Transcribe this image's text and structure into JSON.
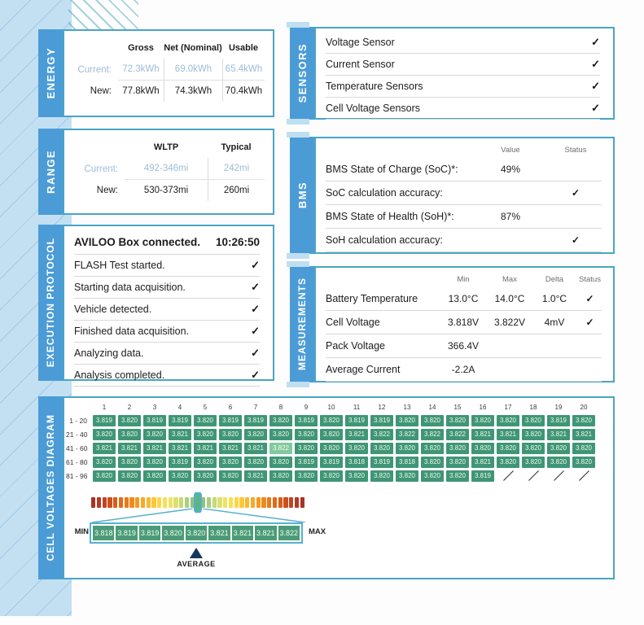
{
  "report": {
    "energy": {
      "title": "ENERGY",
      "col_headers": [
        "Gross",
        "Net (Nominal)",
        "Usable"
      ],
      "current": {
        "label": "Current:",
        "values": [
          "72.3kWh",
          "69.0kWh",
          "65.4kWh"
        ]
      },
      "new": {
        "label": "New:",
        "values": [
          "77.8kWh",
          "74.3kWh",
          "70.4kWh"
        ]
      }
    },
    "range": {
      "title": "RANGE",
      "col_headers": [
        "WLTP",
        "Typical"
      ],
      "current": {
        "label": "Current:",
        "values": [
          "492-346mi",
          "242mi"
        ]
      },
      "new": {
        "label": "New:",
        "values": [
          "530-373mi",
          "260mi"
        ]
      }
    },
    "sensors": {
      "title": "SENSORS",
      "items": [
        {
          "label": "Voltage Sensor",
          "status": "✓"
        },
        {
          "label": "Current Sensor",
          "status": "✓"
        },
        {
          "label": "Temperature Sensors",
          "status": "✓"
        },
        {
          "label": "Cell Voltage Sensors",
          "status": "✓"
        }
      ]
    },
    "bms": {
      "title": "BMS",
      "col_headers": [
        "Value",
        "Status"
      ],
      "rows": [
        {
          "label": "BMS State of Charge (SoC)*:",
          "value": "49%",
          "status": ""
        },
        {
          "label": "SoC calculation accuracy:",
          "value": "",
          "status": "✓"
        },
        {
          "label": "BMS State of Health (SoH)*:",
          "value": "87%",
          "status": ""
        },
        {
          "label": "SoH calculation accuracy:",
          "value": "",
          "status": "✓"
        }
      ]
    },
    "protocol": {
      "title": "EXECUTION PROTOCOL",
      "header": {
        "label": "AVILOO Box connected.",
        "time": "10:26:50"
      },
      "items": [
        {
          "label": "FLASH Test started.",
          "status": "✓"
        },
        {
          "label": "Starting data acquisition.",
          "status": "✓"
        },
        {
          "label": "Vehicle detected.",
          "status": "✓"
        },
        {
          "label": "Finished data acquisition.",
          "status": "✓"
        },
        {
          "label": "Analyzing data.",
          "status": "✓"
        },
        {
          "label": "Analysis completed.",
          "status": "✓"
        }
      ]
    },
    "measurements": {
      "title": "MEASUREMENTS",
      "col_headers": [
        "Min",
        "Max",
        "Delta",
        "Status"
      ],
      "rows": [
        {
          "label": "Battery Temperature",
          "min": "13.0°C",
          "max": "14.0°C",
          "delta": "1.0°C",
          "status": "✓"
        },
        {
          "label": "Cell Voltage",
          "min": "3.818V",
          "max": "3.822V",
          "delta": "4mV",
          "status": "✓"
        },
        {
          "label": "Pack Voltage",
          "min": "366.4V",
          "max": "",
          "delta": "",
          "status": ""
        },
        {
          "label": "Average Current",
          "min": "-2.2A",
          "max": "",
          "delta": "",
          "status": ""
        }
      ]
    },
    "cell_voltages": {
      "title": "CELL VOLTAGES DIAGRAM"
    }
  },
  "chart_data": {
    "type": "heatmap",
    "title": "CELL VOLTAGES DIAGRAM",
    "unit": "V",
    "columns": [
      "1",
      "2",
      "3",
      "4",
      "5",
      "6",
      "7",
      "8",
      "9",
      "10",
      "11",
      "12",
      "13",
      "14",
      "15",
      "16",
      "17",
      "18",
      "19",
      "20"
    ],
    "row_labels": [
      "1 - 20",
      "21 - 40",
      "41 - 60",
      "61 - 80",
      "81 - 96"
    ],
    "values": [
      [
        "3.819",
        "3.820",
        "3.819",
        "3.819",
        "3.820",
        "3.819",
        "3.819",
        "3.820",
        "3.819",
        "3.820",
        "3.819",
        "3.819",
        "3.820",
        "3.820",
        "3.820",
        "3.820",
        "3.820",
        "3.820",
        "3.819",
        "3.820"
      ],
      [
        "3.820",
        "3.820",
        "3.820",
        "3.821",
        "3.820",
        "3.820",
        "3.820",
        "3.820",
        "3.820",
        "3.820",
        "3.821",
        "3.822",
        "3.822",
        "3.822",
        "3.822",
        "3.821",
        "3.821",
        "3.820",
        "3.821",
        "3.821"
      ],
      [
        "3.821",
        "3.821",
        "3.821",
        "3.821",
        "3.821",
        "3.821",
        "3.821",
        "3.822",
        "3.820",
        "3.820",
        "3.820",
        "3.820",
        "3.820",
        "3.820",
        "3.820",
        "3.820",
        "3.820",
        "3.820",
        "3.820",
        "3.820"
      ],
      [
        "3.820",
        "3.820",
        "3.820",
        "3.819",
        "3.820",
        "3.820",
        "3.820",
        "3.820",
        "3.819",
        "3.819",
        "3.818",
        "3.819",
        "3.818",
        "3.820",
        "3.820",
        "3.821",
        "3.820",
        "3.820",
        "3.820",
        "3.820"
      ],
      [
        "3.820",
        "3.820",
        "3.820",
        "3.820",
        "3.820",
        "3.820",
        "3.821",
        "3.820",
        "3.820",
        "3.820",
        "3.820",
        "3.820",
        "3.820",
        "3.820",
        "3.820",
        "3.819",
        null,
        null,
        null,
        null
      ]
    ],
    "max_highlight": {
      "row_index": 2,
      "col_index": 7,
      "value": "3.822"
    },
    "legend": {
      "min_label": "MIN",
      "max_label": "MAX",
      "average_label": "AVERAGE",
      "magnified_values": [
        "3.818",
        "3.819",
        "3.819",
        "3.820",
        "3.820",
        "3.821",
        "3.821",
        "3.821",
        "3.822"
      ],
      "average_index": 4
    },
    "gradient_colors": [
      "#a93226",
      "#b23b27",
      "#bf4522",
      "#ca511f",
      "#d55e1c",
      "#e06b1a",
      "#e97918",
      "#f08a1b",
      "#f49a20",
      "#f8aa28",
      "#fab931",
      "#fcc83b",
      "#fcd647",
      "#f8e055",
      "#eee363",
      "#dce06e",
      "#c6d877",
      "#abce7d",
      "#8ec481",
      "#5fb381",
      "#8ec481",
      "#abce7d",
      "#c6d877",
      "#dce06e",
      "#eee363",
      "#f8e055",
      "#fcd647",
      "#fcc83b",
      "#fab931",
      "#f8aa28",
      "#f49a20",
      "#f08a1b",
      "#e97918",
      "#e06b1a",
      "#d55e1c",
      "#ca511f",
      "#bf4522",
      "#b23b27",
      "#a93226"
    ],
    "gradient_highlight_index": 19
  },
  "colors": {
    "tab_blue": "#4b9cd6",
    "panel_border": "#49a5c5",
    "strip_blue": "#c3e0f3",
    "cell_green": "#3f9676",
    "cell_green_highlight": "#82c9a0",
    "current_text_blue": "#9cbcd6",
    "average_marker_navy": "#16365c"
  }
}
